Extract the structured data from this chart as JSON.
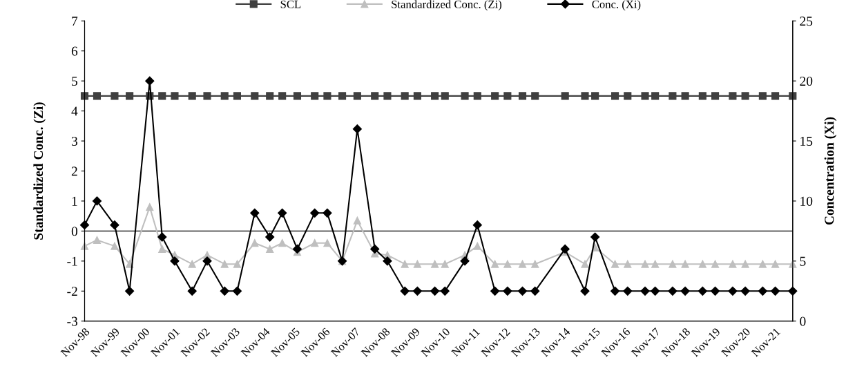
{
  "chart_data": {
    "type": "line",
    "ylabel": "Standardized Conc. (Zi)",
    "y2label": "Concentration (Xi)",
    "x": [
      "1998-11",
      "1999-04",
      "1999-11",
      "2000-05",
      "2001-01",
      "2001-06",
      "2001-11",
      "2002-06",
      "2002-12",
      "2003-07",
      "2003-12",
      "2004-07",
      "2005-01",
      "2005-06",
      "2005-12",
      "2006-07",
      "2006-12",
      "2007-06",
      "2007-12",
      "2008-07",
      "2008-12",
      "2009-07",
      "2009-12",
      "2010-07",
      "2010-11",
      "2011-07",
      "2011-12",
      "2012-07",
      "2012-12",
      "2013-06",
      "2013-11",
      "2014-11",
      "2015-07",
      "2015-11",
      "2016-07",
      "2016-12",
      "2017-07",
      "2017-11",
      "2018-06",
      "2018-11",
      "2019-06",
      "2019-11",
      "2020-06",
      "2020-11",
      "2021-06",
      "2021-11",
      "2022-06"
    ],
    "series": [
      {
        "name": "SCL",
        "color": "#404040",
        "marker": "square",
        "values": [
          4.5,
          4.5,
          4.5,
          4.5,
          4.5,
          4.5,
          4.5,
          4.5,
          4.5,
          4.5,
          4.5,
          4.5,
          4.5,
          4.5,
          4.5,
          4.5,
          4.5,
          4.5,
          4.5,
          4.5,
          4.5,
          4.5,
          4.5,
          4.5,
          4.5,
          4.5,
          4.5,
          4.5,
          4.5,
          4.5,
          4.5,
          4.5,
          4.5,
          4.5,
          4.5,
          4.5,
          4.5,
          4.5,
          4.5,
          4.5,
          4.5,
          4.5,
          4.5,
          4.5,
          4.5,
          4.5,
          4.5
        ]
      },
      {
        "name": "Standardized Conc. (Zi)",
        "color": "#bfbfbf",
        "marker": "triangle",
        "values": [
          -0.5,
          -0.3,
          -0.5,
          -1.1,
          0.8,
          -0.6,
          -0.8,
          -1.1,
          -0.8,
          -1.1,
          -1.1,
          -0.4,
          -0.6,
          -0.4,
          -0.7,
          -0.4,
          -0.4,
          -1.0,
          0.35,
          -0.75,
          -0.8,
          -1.1,
          -1.1,
          -1.1,
          -1.1,
          -0.8,
          -0.5,
          -1.1,
          -1.1,
          -1.1,
          -1.1,
          -0.7,
          -1.1,
          -0.55,
          -1.1,
          -1.1,
          -1.1,
          -1.1,
          -1.1,
          -1.1,
          -1.1,
          -1.1,
          -1.1,
          -1.1,
          -1.1,
          -1.1,
          -1.1
        ]
      },
      {
        "name": "Conc. (Xi)",
        "color": "#000000",
        "marker": "diamond",
        "axis": "y2",
        "values": [
          8,
          10,
          8,
          2.5,
          20,
          7,
          5,
          2.5,
          5,
          2.5,
          2.5,
          9,
          7,
          9,
          6,
          9,
          9,
          5,
          16,
          6,
          5,
          2.5,
          2.5,
          2.5,
          2.5,
          5,
          8,
          2.5,
          2.5,
          2.5,
          2.5,
          6,
          2.5,
          7,
          2.5,
          2.5,
          2.5,
          2.5,
          2.5,
          2.5,
          2.5,
          2.5,
          2.5,
          2.5,
          2.5,
          2.5,
          2.5
        ]
      }
    ],
    "xlim": [
      "1998-11",
      "2022-06"
    ],
    "xticks": [
      {
        "value": "1998-11",
        "label": "Nov-98"
      },
      {
        "value": "1999-11",
        "label": "Nov-99"
      },
      {
        "value": "2000-11",
        "label": "Nov-00"
      },
      {
        "value": "2001-11",
        "label": "Nov-01"
      },
      {
        "value": "2002-11",
        "label": "Nov-02"
      },
      {
        "value": "2003-11",
        "label": "Nov-03"
      },
      {
        "value": "2004-11",
        "label": "Nov-04"
      },
      {
        "value": "2005-11",
        "label": "Nov-05"
      },
      {
        "value": "2006-11",
        "label": "Nov-06"
      },
      {
        "value": "2007-11",
        "label": "Nov-07"
      },
      {
        "value": "2008-11",
        "label": "Nov-08"
      },
      {
        "value": "2009-11",
        "label": "Nov-09"
      },
      {
        "value": "2010-11",
        "label": "Nov-10"
      },
      {
        "value": "2011-11",
        "label": "Nov-11"
      },
      {
        "value": "2012-11",
        "label": "Nov-12"
      },
      {
        "value": "2013-11",
        "label": "Nov-13"
      },
      {
        "value": "2014-11",
        "label": "Nov-14"
      },
      {
        "value": "2015-11",
        "label": "Nov-15"
      },
      {
        "value": "2016-11",
        "label": "Nov-16"
      },
      {
        "value": "2017-11",
        "label": "Nov-17"
      },
      {
        "value": "2018-11",
        "label": "Nov-18"
      },
      {
        "value": "2019-11",
        "label": "Nov-19"
      },
      {
        "value": "2020-11",
        "label": "Nov-20"
      },
      {
        "value": "2021-11",
        "label": "Nov-21"
      }
    ],
    "ylim": [
      -3,
      7
    ],
    "yticks": [
      -3,
      -2,
      -1,
      0,
      1,
      2,
      3,
      4,
      5,
      6,
      7
    ],
    "y2lim": [
      0,
      25
    ],
    "y2ticks": [
      0,
      5,
      10,
      15,
      20,
      25
    ],
    "ref_lines": [
      {
        "axis": "y",
        "value": 0,
        "color": "#000000"
      }
    ],
    "grid": false,
    "legend": "top",
    "line_style": "solid"
  }
}
